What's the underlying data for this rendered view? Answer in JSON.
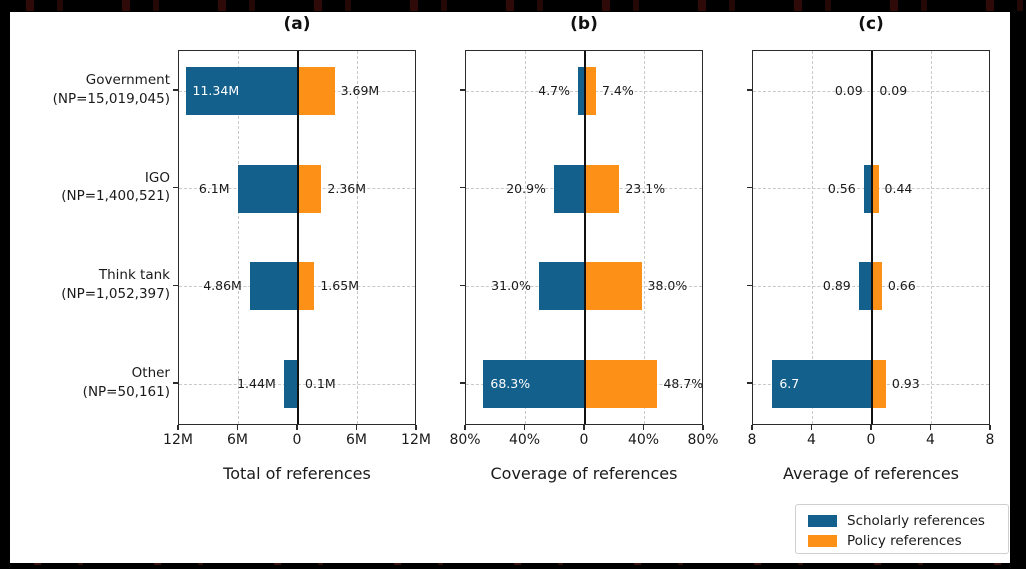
{
  "colors": {
    "scholarly": "#14608C",
    "policy": "#FD9117",
    "grid": "#c9c9c9",
    "axis": "#2b2b2b",
    "figure_background": "#ffffff",
    "page_background": "#000000"
  },
  "categories": [
    {
      "name": "Government",
      "np_label": "(NP=15,019,045)"
    },
    {
      "name": "IGO",
      "np_label": "(NP=1,400,521)"
    },
    {
      "name": "Think tank",
      "np_label": "(NP=1,052,397)"
    },
    {
      "name": "Other",
      "np_label": "(NP=50,161)"
    }
  ],
  "legend": {
    "items": [
      {
        "label": "Scholarly references",
        "color": "#14608C"
      },
      {
        "label": "Policy references",
        "color": "#FD9117"
      }
    ]
  },
  "chart_data": [
    {
      "type": "bar",
      "orientation": "horizontal_diverging",
      "panel": "(a)",
      "xlabel": "Total of references",
      "categories": [
        "Government (NP=15,019,045)",
        "IGO (NP=1,400,521)",
        "Think tank (NP=1,052,397)",
        "Other (NP=50,161)"
      ],
      "axis_max": 12,
      "unit": "M",
      "xticks": [
        "12M",
        "6M",
        "0",
        "6M",
        "12M"
      ],
      "grid": true,
      "series": [
        {
          "name": "Scholarly references",
          "side": "left",
          "values": [
            11.34,
            6.1,
            4.86,
            1.44
          ],
          "value_labels": [
            "11.34M",
            "6.1M",
            "4.86M",
            "1.44M"
          ],
          "label_inside": [
            true,
            false,
            false,
            false
          ]
        },
        {
          "name": "Policy references",
          "side": "right",
          "values": [
            3.69,
            2.36,
            1.65,
            0.1
          ],
          "value_labels": [
            "3.69M",
            "2.36M",
            "1.65M",
            "0.1M"
          ],
          "label_inside": [
            false,
            false,
            false,
            false
          ]
        }
      ]
    },
    {
      "type": "bar",
      "orientation": "horizontal_diverging",
      "panel": "(b)",
      "xlabel": "Coverage of references",
      "categories": [
        "Government (NP=15,019,045)",
        "IGO (NP=1,400,521)",
        "Think tank (NP=1,052,397)",
        "Other (NP=50,161)"
      ],
      "axis_max": 80,
      "unit": "%",
      "xticks": [
        "80%",
        "40%",
        "0",
        "40%",
        "80%"
      ],
      "grid": true,
      "series": [
        {
          "name": "Scholarly references",
          "side": "left",
          "values": [
            4.7,
            20.9,
            31.0,
            68.3
          ],
          "value_labels": [
            "4.7%",
            "20.9%",
            "31.0%",
            "68.3%"
          ],
          "label_inside": [
            false,
            false,
            false,
            true
          ]
        },
        {
          "name": "Policy references",
          "side": "right",
          "values": [
            7.4,
            23.1,
            38.0,
            48.7
          ],
          "value_labels": [
            "7.4%",
            "23.1%",
            "38.0%",
            "48.7%"
          ],
          "label_inside": [
            false,
            false,
            false,
            false
          ]
        }
      ]
    },
    {
      "type": "bar",
      "orientation": "horizontal_diverging",
      "panel": "(c)",
      "xlabel": "Average of references",
      "categories": [
        "Government (NP=15,019,045)",
        "IGO (NP=1,400,521)",
        "Think tank (NP=1,052,397)",
        "Other (NP=50,161)"
      ],
      "axis_max": 8,
      "unit": "",
      "xticks": [
        "8",
        "4",
        "0",
        "4",
        "8"
      ],
      "grid": true,
      "series": [
        {
          "name": "Scholarly references",
          "side": "left",
          "values": [
            0.09,
            0.56,
            0.89,
            6.7
          ],
          "value_labels": [
            "0.09",
            "0.56",
            "0.89",
            "6.7"
          ],
          "label_inside": [
            false,
            false,
            false,
            true
          ]
        },
        {
          "name": "Policy references",
          "side": "right",
          "values": [
            0.09,
            0.44,
            0.66,
            0.93
          ],
          "value_labels": [
            "0.09",
            "0.44",
            "0.66",
            "0.93"
          ],
          "label_inside": [
            false,
            false,
            false,
            false
          ]
        }
      ]
    }
  ]
}
